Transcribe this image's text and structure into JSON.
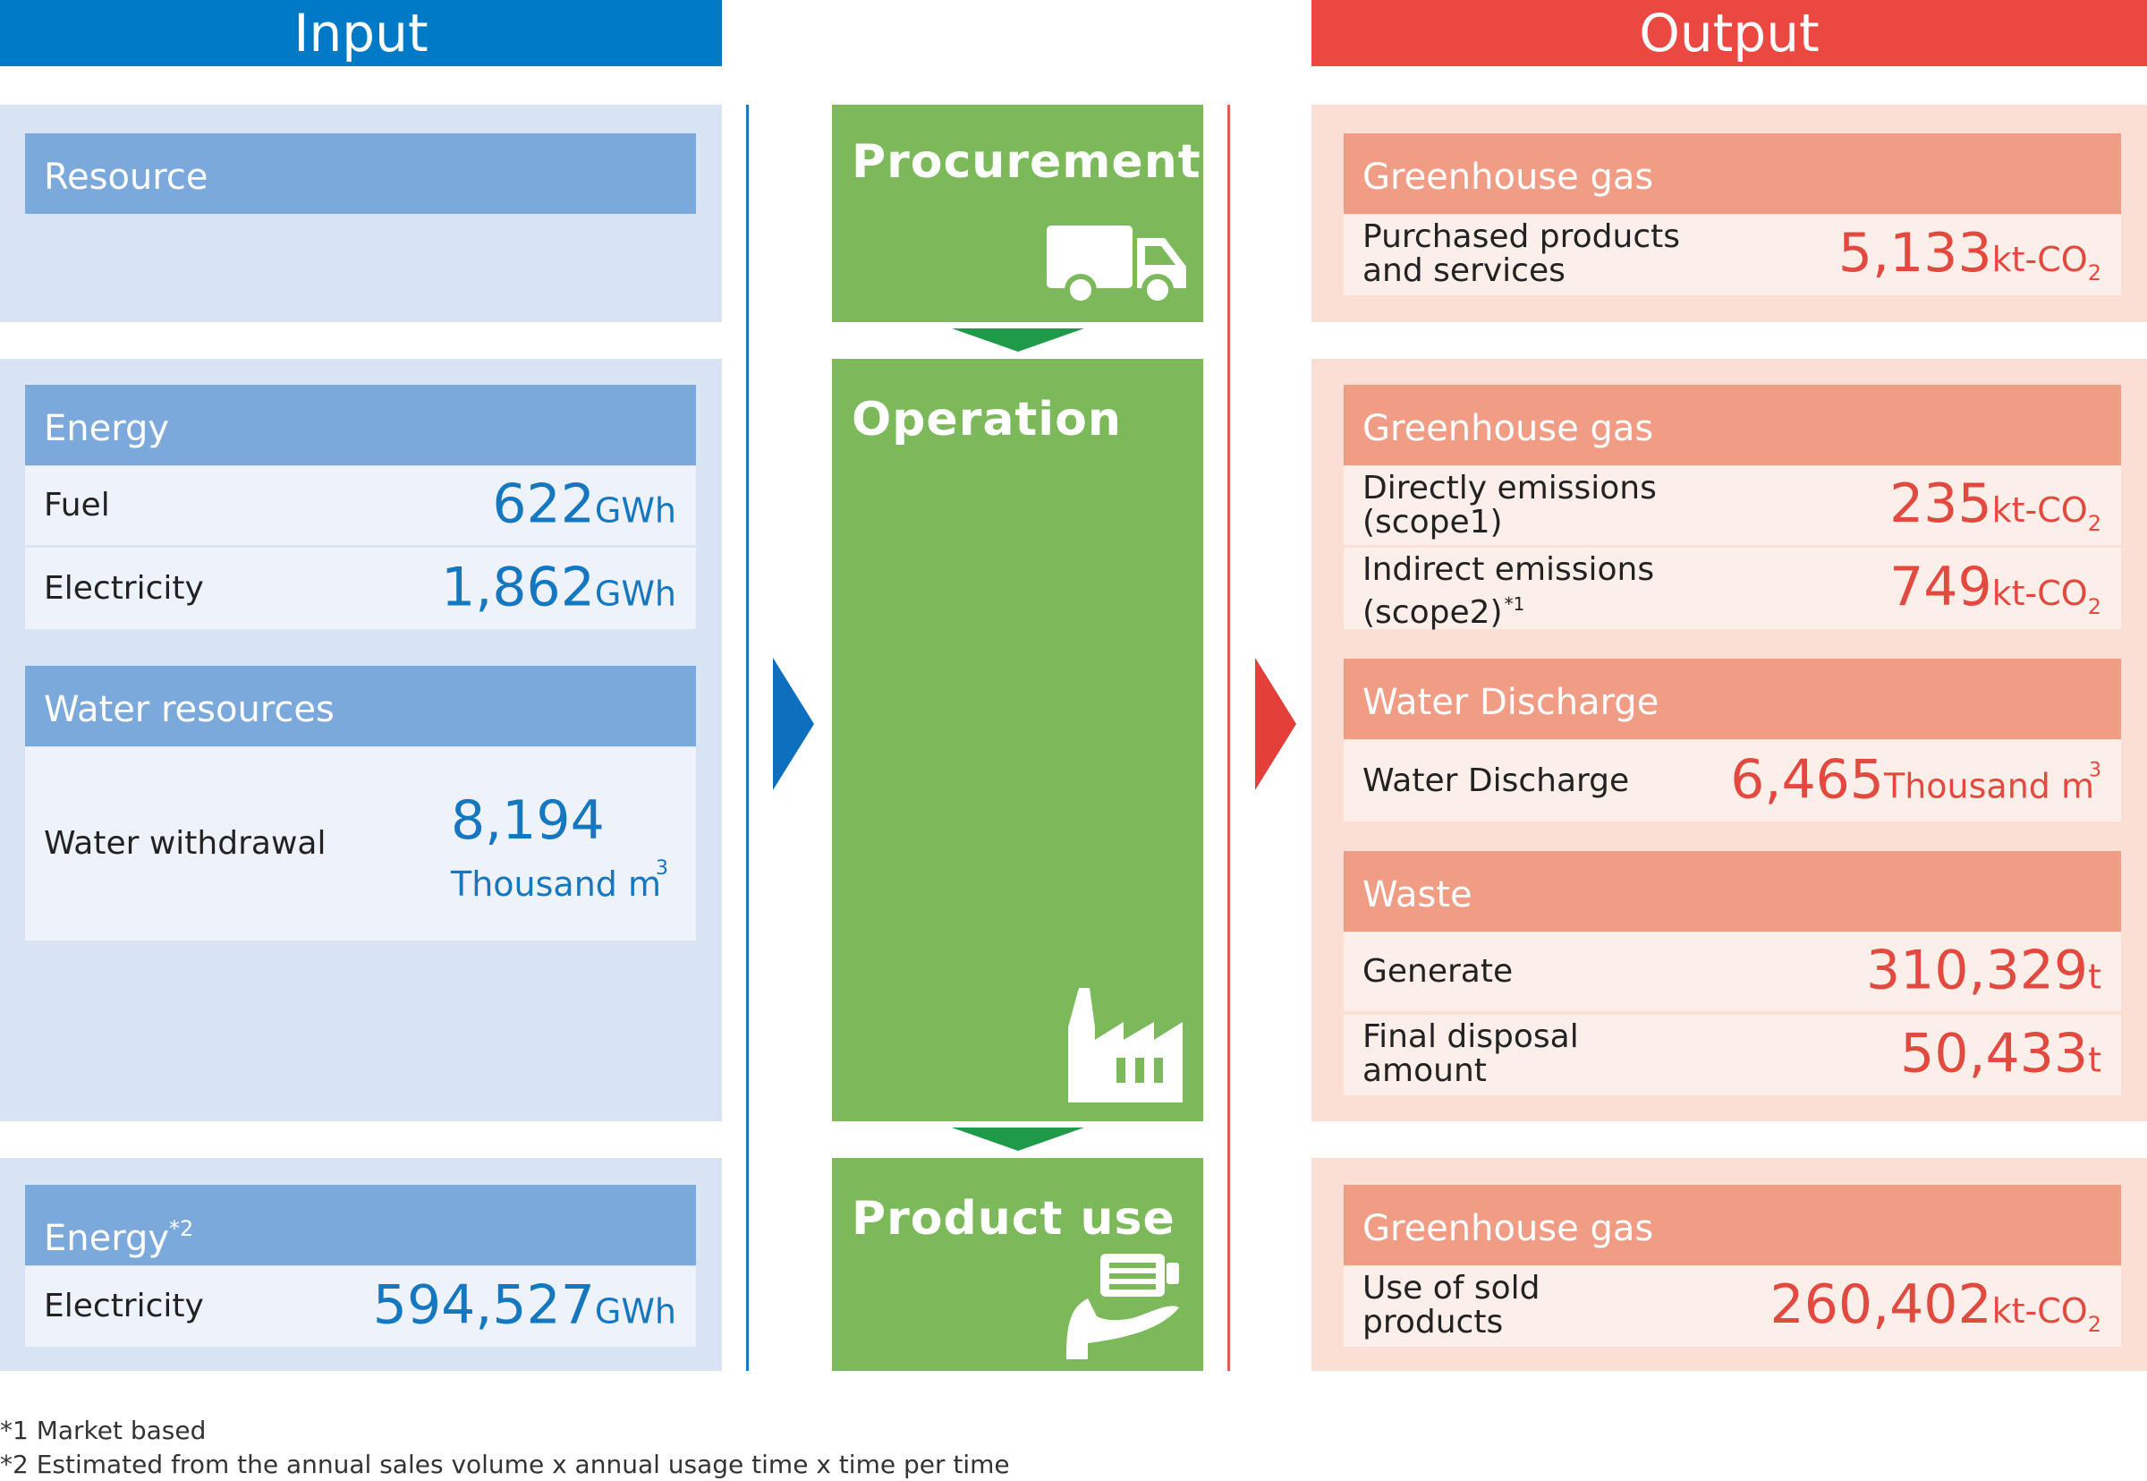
{
  "input": {
    "header": "Input",
    "resource": {
      "title": "Resource"
    },
    "energy": {
      "title": "Energy",
      "rows": [
        {
          "label": "Fuel",
          "value": "622",
          "unit": "GWh"
        },
        {
          "label": "Electricity",
          "value": "1,862",
          "unit": "GWh"
        }
      ]
    },
    "water": {
      "title": "Water resources",
      "row": {
        "label": "Water withdrawal",
        "value": "8,194",
        "unit": "Thousand m",
        "unit_sup": "3"
      }
    },
    "energy2": {
      "title": "Energy",
      "title_sup": "*2",
      "row": {
        "label": "Electricity",
        "value": "594,527",
        "unit": "GWh"
      }
    }
  },
  "stages": {
    "procurement": "Procurement",
    "operation": "Operation",
    "product_use": "Product use"
  },
  "output": {
    "header": "Output",
    "procurement_ghg": {
      "title": "Greenhouse gas",
      "row": {
        "label_line1": "Purchased products",
        "label_line2": "and services",
        "value": "5,133",
        "unit": "kt-CO",
        "unit_sub": "2"
      }
    },
    "operation_ghg": {
      "title": "Greenhouse gas",
      "rows": [
        {
          "label_line1": "Directly emissions",
          "label_line2": "(scope1)",
          "value": "235",
          "unit": "kt-CO",
          "unit_sub": "2"
        },
        {
          "label_line1": "Indirect emissions",
          "label_line2": "(scope2)",
          "label_sup": "*1",
          "value": "749",
          "unit": "kt-CO",
          "unit_sub": "2"
        }
      ]
    },
    "water_discharge": {
      "title": "Water Discharge",
      "row": {
        "label": "Water Discharge",
        "value": "6,465",
        "unit": "Thousand m",
        "unit_sup": "3"
      }
    },
    "waste": {
      "title": "Waste",
      "rows": [
        {
          "label": "Generate",
          "value": "310,329",
          "unit": "t"
        },
        {
          "label_line1": "Final disposal",
          "label_line2": "amount",
          "value": "50,433",
          "unit": "t"
        }
      ]
    },
    "product_use_ghg": {
      "title": "Greenhouse gas",
      "row": {
        "label_line1": "Use of sold",
        "label_line2": "products",
        "value": "260,402",
        "unit": "kt-CO",
        "unit_sub": "2"
      }
    }
  },
  "notes": [
    "*1 Market based",
    "*2 Estimated from the annual sales volume x annual usage time x time per time"
  ],
  "colors": {
    "input_accent": "#0079c7",
    "output_accent": "#ea4840",
    "stage_green": "#7cb95a",
    "arrow_green": "#1e9a48"
  },
  "icons": [
    "truck-icon",
    "factory-icon",
    "hand-product-icon"
  ]
}
